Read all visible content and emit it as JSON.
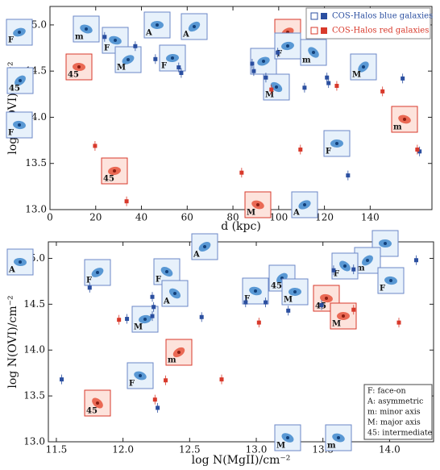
{
  "chart_data": [
    {
      "type": "scatter",
      "xlabel": "d (kpc)",
      "ylabel": "log N(OVI)/cm⁻²",
      "xlim": [
        0,
        167
      ],
      "ylim": [
        13.0,
        15.2
      ],
      "xticks": [
        0,
        20,
        40,
        60,
        80,
        100,
        120,
        140
      ],
      "yticks": [
        {
          "value": 13,
          "label": "13.0"
        },
        {
          "value": 13.5,
          "label": "13.5"
        },
        {
          "value": 14,
          "label": "14.0"
        },
        {
          "value": 14.5,
          "label": "14.5"
        },
        {
          "value": 15,
          "label": "15.0"
        }
      ],
      "legend": "upper right",
      "series": [
        {
          "name": "COS-Halos blue galaxies",
          "color": "#2b4fa0",
          "x": [
            23.9,
            37.3,
            46.1,
            56.3,
            57.4,
            88.4,
            89.1,
            94.4,
            99.6,
            111.3,
            121.8,
            121.1,
            130.3,
            154.2,
            161.6
          ],
          "y": [
            14.87,
            14.77,
            14.63,
            14.54,
            14.48,
            14.58,
            14.5,
            14.43,
            14.7,
            14.32,
            14.37,
            14.43,
            13.37,
            14.42,
            13.63
          ]
        },
        {
          "name": "COS-Halos red galaxies",
          "color": "#d8392b",
          "x": [
            19.7,
            33.5,
            83.8,
            96.8,
            109.5,
            125.4,
            145.4,
            160.6
          ],
          "y": [
            13.69,
            13.09,
            13.4,
            14.3,
            13.65,
            14.34,
            14.28,
            13.65
          ]
        }
      ],
      "thumbnails": [
        "A",
        "A",
        "m",
        "F",
        "F",
        "M",
        "F",
        "45",
        "45",
        "F",
        "F",
        "m",
        "M",
        "M",
        "F",
        "m",
        "45",
        "M",
        "A"
      ]
    },
    {
      "type": "scatter",
      "xlabel": "log N(MgII)/cm⁻²",
      "ylabel": "log N(OVI)/cm⁻²",
      "xlim": [
        11.44,
        14.33
      ],
      "ylim": [
        13.0,
        15.18
      ],
      "xticks": [
        {
          "value": 11.5,
          "label": "11.5"
        },
        {
          "value": 12,
          "label": "12.0"
        },
        {
          "value": 12.5,
          "label": "12.5"
        },
        {
          "value": 13,
          "label": "13.0"
        },
        {
          "value": 13.5,
          "label": "13.5"
        },
        {
          "value": 14,
          "label": "14.0"
        }
      ],
      "yticks": [
        {
          "value": 13,
          "label": "13.0"
        },
        {
          "value": 13.5,
          "label": "13.5"
        },
        {
          "value": 14,
          "label": "14.0"
        },
        {
          "value": 14.5,
          "label": "14.5"
        },
        {
          "value": 15,
          "label": "15.0"
        }
      ],
      "series": [
        {
          "color": "#2b4fa0",
          "x": [
            11.54,
            11.75,
            12.22,
            12.23,
            12.22,
            12.03,
            12.59,
            12.92,
            13.07,
            13.24,
            13.58,
            13.73,
            14.2,
            12.26,
            13.49
          ],
          "y": [
            13.68,
            14.68,
            14.58,
            14.47,
            14.37,
            14.34,
            14.36,
            14.52,
            14.52,
            14.43,
            14.87,
            14.88,
            14.98,
            13.37,
            14.49
          ]
        },
        {
          "color": "#d8392b",
          "x": [
            11.97,
            13.02,
            12.32,
            12.74,
            14.07,
            13.73,
            12.24
          ],
          "y": [
            14.33,
            14.3,
            13.67,
            13.68,
            14.3,
            14.44,
            13.46
          ]
        }
      ],
      "thumbnails": [
        "A",
        "F",
        "F",
        "A",
        "A",
        "M",
        "m",
        "F",
        "45",
        "45",
        "F",
        "M",
        "45",
        "M",
        "A",
        "m",
        "F",
        "F",
        "M",
        "m"
      ],
      "key": [
        "F: face-on",
        "A: asymmetric",
        "m: minor axis",
        "M: major axis",
        "45: intermediate"
      ]
    }
  ]
}
